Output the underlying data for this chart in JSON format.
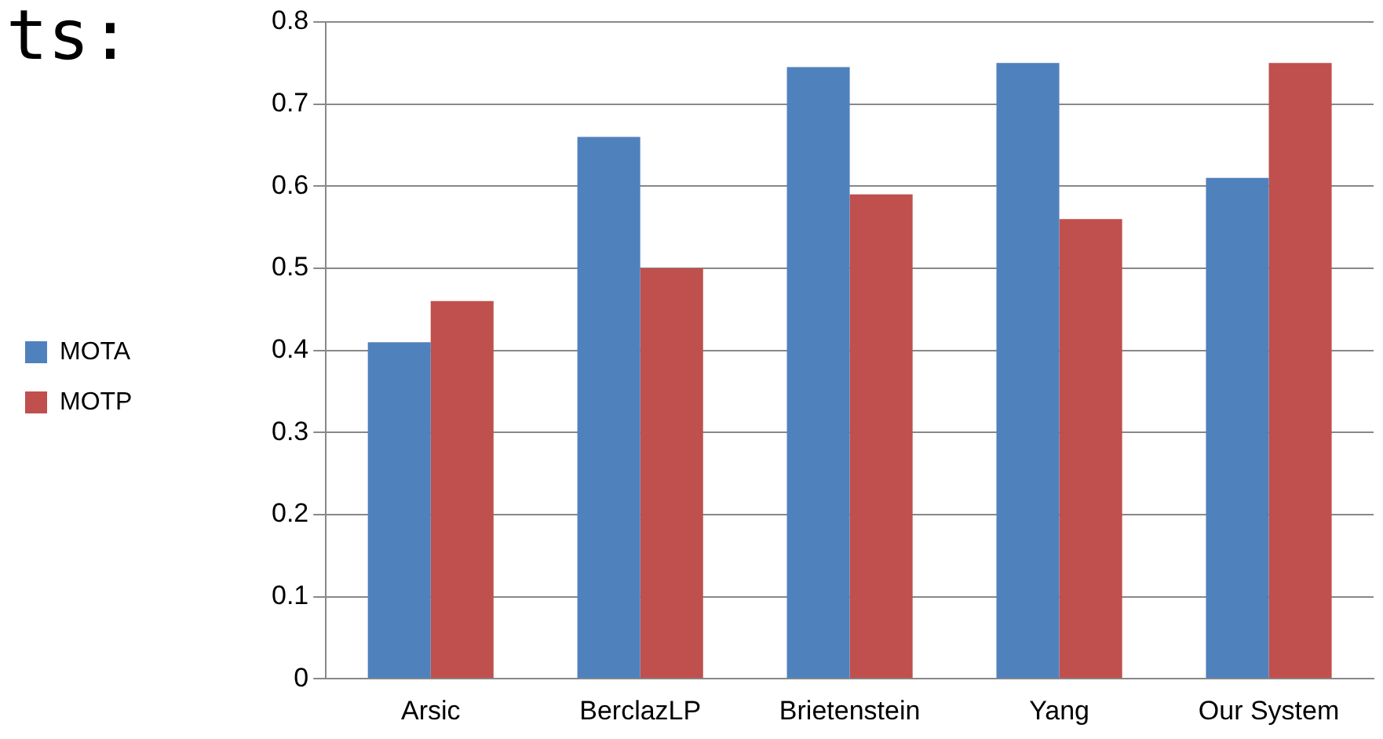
{
  "chart_data": {
    "type": "bar",
    "categories": [
      "Arsic",
      "BerclazLP",
      "Brietenstein",
      "Yang",
      "Our System"
    ],
    "series": [
      {
        "name": "MOTA",
        "color": "#4f81bd",
        "values": [
          0.41,
          0.66,
          0.745,
          0.75,
          0.61
        ]
      },
      {
        "name": "MOTP",
        "color": "#c0504d",
        "values": [
          0.46,
          0.5,
          0.59,
          0.56,
          0.75
        ]
      }
    ],
    "ylim": [
      0,
      0.8
    ],
    "yticks": [
      0,
      0.1,
      0.2,
      0.3,
      0.4,
      0.5,
      0.6,
      0.7,
      0.8
    ],
    "grid": "y",
    "legend": "left",
    "annotations": [
      "ts:"
    ]
  }
}
